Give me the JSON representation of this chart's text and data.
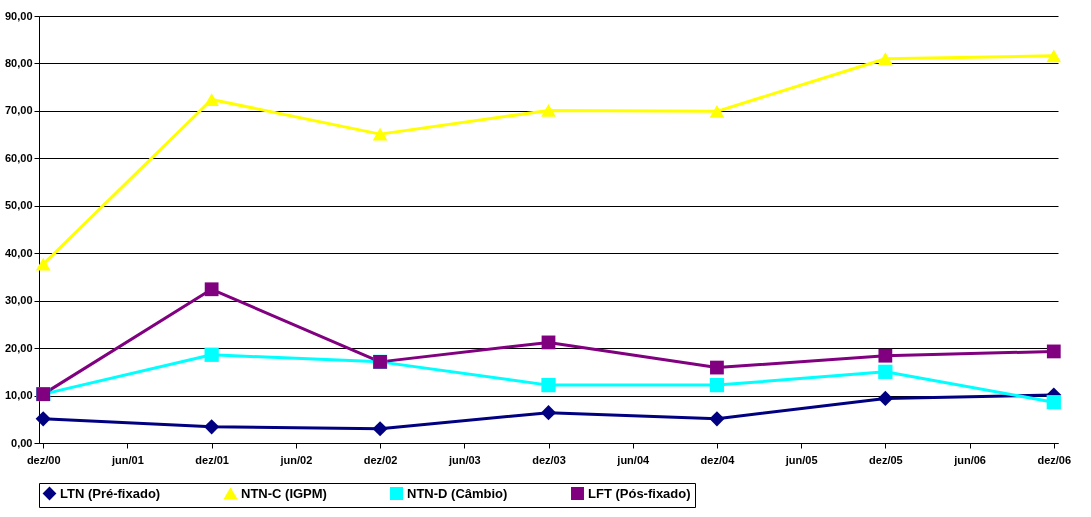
{
  "chart_data": {
    "type": "line",
    "categories": [
      "dez/00",
      "jun/01",
      "dez/01",
      "jun/02",
      "dez/02",
      "jun/03",
      "dez/03",
      "jun/04",
      "dez/04",
      "jun/05",
      "dez/05",
      "jun/06",
      "dez/06"
    ],
    "series": [
      {
        "name": "LTN (Pré-fixado)",
        "color": "#000080",
        "marker": "diamond",
        "values": [
          5.1,
          null,
          3.4,
          null,
          3.0,
          null,
          6.4,
          null,
          5.1,
          null,
          9.4,
          null,
          10.1
        ]
      },
      {
        "name": "NTN-C (IGPM)",
        "color": "#ffff00",
        "marker": "triangle",
        "values": [
          37.7,
          null,
          72.4,
          null,
          65.1,
          null,
          70.1,
          null,
          69.9,
          null,
          81.0,
          null,
          81.6
        ]
      },
      {
        "name": "NTN-D (Câmbio)",
        "color": "#00ffff",
        "marker": "square",
        "values": [
          10.3,
          null,
          18.6,
          null,
          17.1,
          null,
          12.2,
          null,
          12.2,
          null,
          15.0,
          null,
          8.6
        ]
      },
      {
        "name": "LFT (Pós-fixado)",
        "color": "#800080",
        "marker": "square",
        "values": [
          10.3,
          null,
          32.4,
          null,
          17.1,
          null,
          21.2,
          null,
          15.9,
          null,
          18.4,
          null,
          19.3
        ]
      }
    ],
    "ylim": [
      0,
      90
    ],
    "yticks": [
      {
        "value": 0,
        "label": "0,00"
      },
      {
        "value": 10,
        "label": "10,00"
      },
      {
        "value": 20,
        "label": "20,00"
      },
      {
        "value": 30,
        "label": "30,00"
      },
      {
        "value": 40,
        "label": "40,00"
      },
      {
        "value": 50,
        "label": "50,00"
      },
      {
        "value": 60,
        "label": "60,00"
      },
      {
        "value": 70,
        "label": "70,00"
      },
      {
        "value": 80,
        "label": "80,00"
      },
      {
        "value": 90,
        "label": "90,00"
      }
    ],
    "grid": "y",
    "legend": "bottom",
    "line_style": "solid"
  }
}
